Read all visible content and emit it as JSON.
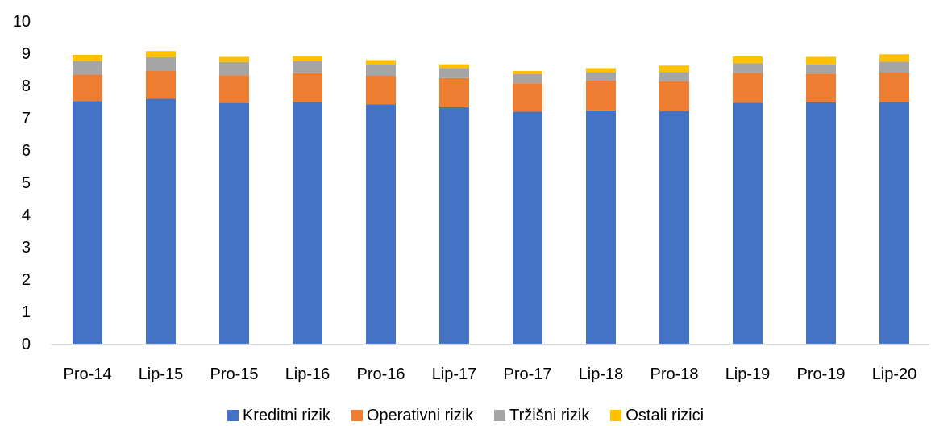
{
  "chart_data": {
    "type": "bar",
    "stacked": true,
    "categories": [
      "Pro-14",
      "Lip-15",
      "Pro-15",
      "Lip-16",
      "Pro-16",
      "Lip-17",
      "Pro-17",
      "Lip-18",
      "Pro-18",
      "Lip-19",
      "Pro-19",
      "Lip-20"
    ],
    "series": [
      {
        "name": "Kreditni rizik",
        "color": "#4472C4",
        "values": [
          7.52,
          7.59,
          7.46,
          7.49,
          7.42,
          7.33,
          7.19,
          7.23,
          7.21,
          7.47,
          7.48,
          7.49
        ]
      },
      {
        "name": "Operativni rizik",
        "color": "#ED7D31",
        "values": [
          0.82,
          0.86,
          0.86,
          0.89,
          0.88,
          0.9,
          0.88,
          0.92,
          0.92,
          0.92,
          0.89,
          0.91
        ]
      },
      {
        "name": "Tržišni rizik",
        "color": "#A5A5A5",
        "values": [
          0.42,
          0.43,
          0.41,
          0.37,
          0.36,
          0.31,
          0.28,
          0.26,
          0.29,
          0.3,
          0.29,
          0.34
        ]
      },
      {
        "name": "Ostali rizici",
        "color": "#FFC000",
        "values": [
          0.19,
          0.19,
          0.16,
          0.16,
          0.13,
          0.12,
          0.1,
          0.13,
          0.2,
          0.21,
          0.23,
          0.23
        ]
      }
    ],
    "title": "",
    "xlabel": "",
    "ylabel": "",
    "ylim": [
      0,
      10
    ],
    "yticks": [
      "0",
      "1",
      "2",
      "3",
      "4",
      "5",
      "6",
      "7",
      "8",
      "9",
      "10"
    ],
    "grid": false,
    "legend_position": "bottom"
  }
}
